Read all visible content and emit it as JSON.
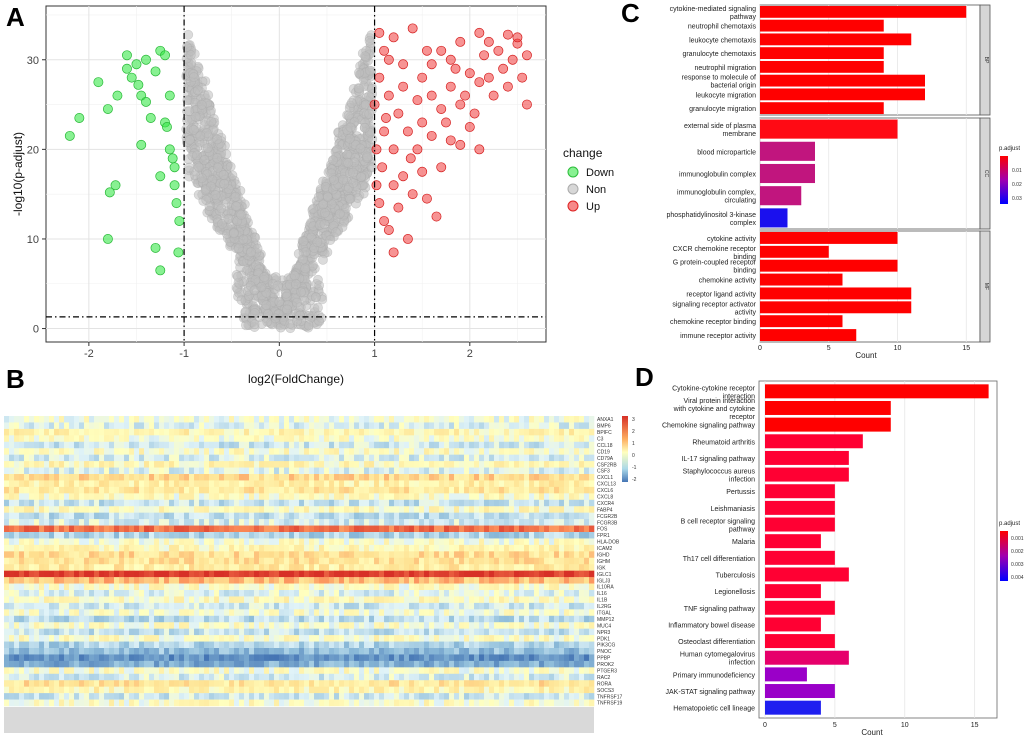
{
  "panels": {
    "a": "A",
    "b": "B",
    "c": "C",
    "d": "D"
  },
  "chart_data": [
    {
      "type": "scatter",
      "id": "volcano",
      "xlabel": "log2(FoldChange)",
      "ylabel": "-log10(p-adjust)",
      "xlim": [
        -2.45,
        2.8
      ],
      "ylim": [
        -1.5,
        36
      ],
      "xticks": [
        -2,
        -1,
        0,
        1,
        2
      ],
      "yticks": [
        0,
        10,
        20,
        30
      ],
      "thresholds": {
        "x": [
          -1,
          1
        ],
        "y": 1.3
      },
      "legend_title": "change",
      "series": [
        {
          "name": "Down",
          "color": "#39e84a",
          "points": [
            [
              -2.2,
              21.5
            ],
            [
              -2.1,
              23.5
            ],
            [
              -1.9,
              27.5
            ],
            [
              -1.8,
              24.5
            ],
            [
              -1.72,
              16
            ],
            [
              -1.78,
              15.2
            ],
            [
              -1.7,
              26
            ],
            [
              -1.6,
              30.5
            ],
            [
              -1.6,
              29
            ],
            [
              -1.55,
              28
            ],
            [
              -1.5,
              29.5
            ],
            [
              -1.48,
              27.2
            ],
            [
              -1.45,
              26
            ],
            [
              -1.4,
              25.3
            ],
            [
              -1.4,
              30
            ],
            [
              -1.35,
              23.5
            ],
            [
              -1.3,
              28.7
            ],
            [
              -1.25,
              31
            ],
            [
              -1.25,
              6.5
            ],
            [
              -1.2,
              30.5
            ],
            [
              -1.2,
              23
            ],
            [
              -1.18,
              22.5
            ],
            [
              -1.15,
              20
            ],
            [
              -1.12,
              19
            ],
            [
              -1.1,
              18
            ],
            [
              -1.1,
              16
            ],
            [
              -1.08,
              14
            ],
            [
              -1.05,
              12
            ],
            [
              -1.06,
              8.5
            ],
            [
              -1.3,
              9
            ],
            [
              -1.8,
              10
            ],
            [
              -1.45,
              20.5
            ],
            [
              -1.25,
              17
            ],
            [
              -1.15,
              26
            ]
          ]
        },
        {
          "name": "Non",
          "color": "#bdbdbd"
        },
        {
          "name": "Up",
          "color": "#f03a3a",
          "points": [
            [
              1.05,
              33
            ],
            [
              1.1,
              31
            ],
            [
              1.2,
              32.5
            ],
            [
              1.4,
              33.5
            ],
            [
              1.5,
              28
            ],
            [
              1.6,
              29.5
            ],
            [
              1.7,
              31
            ],
            [
              1.8,
              30
            ],
            [
              1.9,
              32
            ],
            [
              2.0,
              28.5
            ],
            [
              2.1,
              33
            ],
            [
              2.15,
              30.5
            ],
            [
              2.2,
              32
            ],
            [
              2.3,
              31
            ],
            [
              2.4,
              32.8
            ],
            [
              2.45,
              30
            ],
            [
              2.5,
              31.8
            ],
            [
              2.55,
              28
            ],
            [
              2.6,
              30.5
            ],
            [
              2.6,
              25
            ],
            [
              2.5,
              32.5
            ],
            [
              2.35,
              29
            ],
            [
              2.25,
              26
            ],
            [
              2.1,
              27.5
            ],
            [
              1.9,
              25
            ],
            [
              1.8,
              27
            ],
            [
              1.7,
              24.5
            ],
            [
              1.6,
              26
            ],
            [
              1.5,
              23
            ],
            [
              1.45,
              25.5
            ],
            [
              1.35,
              22
            ],
            [
              1.3,
              27
            ],
            [
              1.25,
              24
            ],
            [
              1.2,
              20
            ],
            [
              1.15,
              26
            ],
            [
              1.1,
              22
            ],
            [
              1.08,
              18
            ],
            [
              1.05,
              14
            ],
            [
              1.1,
              12
            ],
            [
              1.2,
              16
            ],
            [
              1.25,
              13.5
            ],
            [
              1.3,
              17
            ],
            [
              1.4,
              15
            ],
            [
              1.5,
              17.5
            ],
            [
              1.55,
              14.5
            ],
            [
              1.7,
              18
            ],
            [
              1.8,
              21
            ],
            [
              1.9,
              20.5
            ],
            [
              2.0,
              22.5
            ],
            [
              2.1,
              20
            ],
            [
              1.65,
              12.5
            ],
            [
              1.35,
              10
            ],
            [
              1.2,
              8.5
            ],
            [
              1.15,
              11
            ],
            [
              1.45,
              20
            ],
            [
              1.6,
              21.5
            ],
            [
              1.75,
              23
            ],
            [
              1.95,
              26
            ],
            [
              2.05,
              24
            ],
            [
              2.2,
              28
            ],
            [
              2.4,
              27
            ],
            [
              1.05,
              28
            ],
            [
              1.15,
              30
            ],
            [
              1.3,
              29.5
            ],
            [
              1.85,
              29
            ],
            [
              1.55,
              31
            ],
            [
              1.0,
              25
            ],
            [
              1.02,
              20
            ],
            [
              1.02,
              16
            ],
            [
              1.38,
              19
            ],
            [
              1.12,
              23.5
            ]
          ]
        }
      ]
    },
    {
      "type": "heatmap",
      "id": "expression",
      "colorbar_ticks": [
        "3",
        "2",
        "1",
        "0",
        "-1",
        "-2"
      ],
      "genes": [
        "ANXA1",
        "BMP6",
        "BPIFC",
        "C3",
        "CCL18",
        "CD19",
        "CD79A",
        "CSF2RB",
        "CSF3",
        "CXCL1",
        "CXCL13",
        "CXCL6",
        "CXCL8",
        "CXCR4",
        "FABP4",
        "FCGR2B",
        "FCGR3B",
        "FOS",
        "FPR1",
        "HLA-DOB",
        "ICAM2",
        "IGHD",
        "IGHM",
        "IGK",
        "IGLC1",
        "IGLJ3",
        "IL10RA",
        "IL16",
        "IL1B",
        "IL2RG",
        "ITGAL",
        "MMP12",
        "MUC4",
        "NPR3",
        "PDK1",
        "PIK3CG",
        "PNOC",
        "PPBP",
        "PROK2",
        "PTGER3",
        "RAC2",
        "RORA",
        "SOCS3",
        "TNFRSF17",
        "TNFRSF19"
      ],
      "row_levels": [
        0.1,
        -0.2,
        0.6,
        0.2,
        -0.4,
        0.3,
        -0.3,
        0.5,
        -0.2,
        1.2,
        0.7,
        0.9,
        0.3,
        -0.5,
        0.4,
        -0.6,
        -0.3,
        2.6,
        -0.8,
        0.2,
        0.5,
        1.1,
        1.0,
        0.8,
        3.4,
        1.6,
        0.3,
        -0.2,
        0.4,
        -0.4,
        0.1,
        -0.7,
        0.2,
        -0.5,
        0.3,
        -0.8,
        -1.2,
        -2.0,
        -1.5,
        0.2,
        -0.3,
        1.0,
        0.6,
        -0.4,
        0.3
      ]
    },
    {
      "type": "bar",
      "id": "go",
      "orientation": "horizontal",
      "xlabel": "Count",
      "xlim": [
        0,
        16
      ],
      "xticks": [
        0,
        5,
        10,
        15
      ],
      "legend_title": "p.adjust",
      "legend_ticks": [
        "0.01",
        "0.02",
        "0.03"
      ],
      "facets": [
        {
          "name": "BP",
          "categories": [
            "cytokine-mediated signaling pathway",
            "neutrophil chemotaxis",
            "leukocyte chemotaxis",
            "granulocyte chemotaxis",
            "neutrophil migration",
            "response to molecule of bacterial origin",
            "leukocyte migration",
            "granulocyte migration"
          ],
          "values": [
            15,
            9,
            11,
            9,
            9,
            12,
            12,
            9
          ],
          "colors": [
            "#ff0000",
            "#ff0000",
            "#ff0000",
            "#ff0000",
            "#ff0000",
            "#ff0000",
            "#ff0000",
            "#ff0000"
          ]
        },
        {
          "name": "CC",
          "categories": [
            "external side of plasma membrane",
            "blood microparticle",
            "immunoglobulin complex",
            "immunoglobulin complex, circulating",
            "phosphatidylinositol 3-kinase complex"
          ],
          "values": [
            10,
            4,
            4,
            3,
            2
          ],
          "colors": [
            "#ff0a14",
            "#c1157e",
            "#c1157e",
            "#c1157e",
            "#1a10ee"
          ]
        },
        {
          "name": "MF",
          "categories": [
            "cytokine activity",
            "CXCR chemokine receptor binding",
            "G protein-coupled receptor binding",
            "chemokine activity",
            "receptor ligand activity",
            "signaling receptor activator activity",
            "chemokine receptor binding",
            "immune receptor activity"
          ],
          "values": [
            10,
            5,
            10,
            6,
            11,
            11,
            6,
            7
          ],
          "colors": [
            "#ff0000",
            "#ff0000",
            "#ff0000",
            "#ff0000",
            "#ff0000",
            "#ff0000",
            "#ff0000",
            "#ff0000"
          ]
        }
      ]
    },
    {
      "type": "bar",
      "id": "kegg",
      "orientation": "horizontal",
      "xlabel": "Count",
      "xlim": [
        0,
        16.6
      ],
      "xticks": [
        0,
        5,
        10,
        15
      ],
      "legend_title": "p.adjust",
      "legend_ticks": [
        "0.001",
        "0.002",
        "0.003",
        "0.004"
      ],
      "categories": [
        "Cytokine-cytokine receptor interaction",
        "Viral protein interaction with cytokine and cytokine receptor",
        "Chemokine signaling pathway",
        "Rheumatoid arthritis",
        "IL-17 signaling pathway",
        "Staphylococcus aureus infection",
        "Pertussis",
        "Leishmaniasis",
        "B cell receptor signaling pathway",
        "Malaria",
        "Th17 cell differentiation",
        "Tuberculosis",
        "Legionellosis",
        "TNF signaling pathway",
        "Inflammatory bowel disease",
        "Osteoclast differentiation",
        "Human cytomegalovirus infection",
        "Primary immunodeficiency",
        "JAK-STAT signaling pathway",
        "Hematopoietic cell lineage"
      ],
      "values": [
        16,
        9,
        9,
        7,
        6,
        6,
        5,
        5,
        5,
        4,
        5,
        6,
        4,
        5,
        4,
        5,
        6,
        3,
        5,
        4
      ],
      "colors": [
        "#ff0000",
        "#ff0000",
        "#ff0000",
        "#ff0033",
        "#ff0033",
        "#ff0033",
        "#ff0033",
        "#ff0033",
        "#ff0033",
        "#ff0033",
        "#ff0033",
        "#ff0033",
        "#ff0033",
        "#ff0033",
        "#ff0033",
        "#ff0033",
        "#e6006b",
        "#9a00c8",
        "#9a00c8",
        "#1f1ff0"
      ]
    }
  ]
}
